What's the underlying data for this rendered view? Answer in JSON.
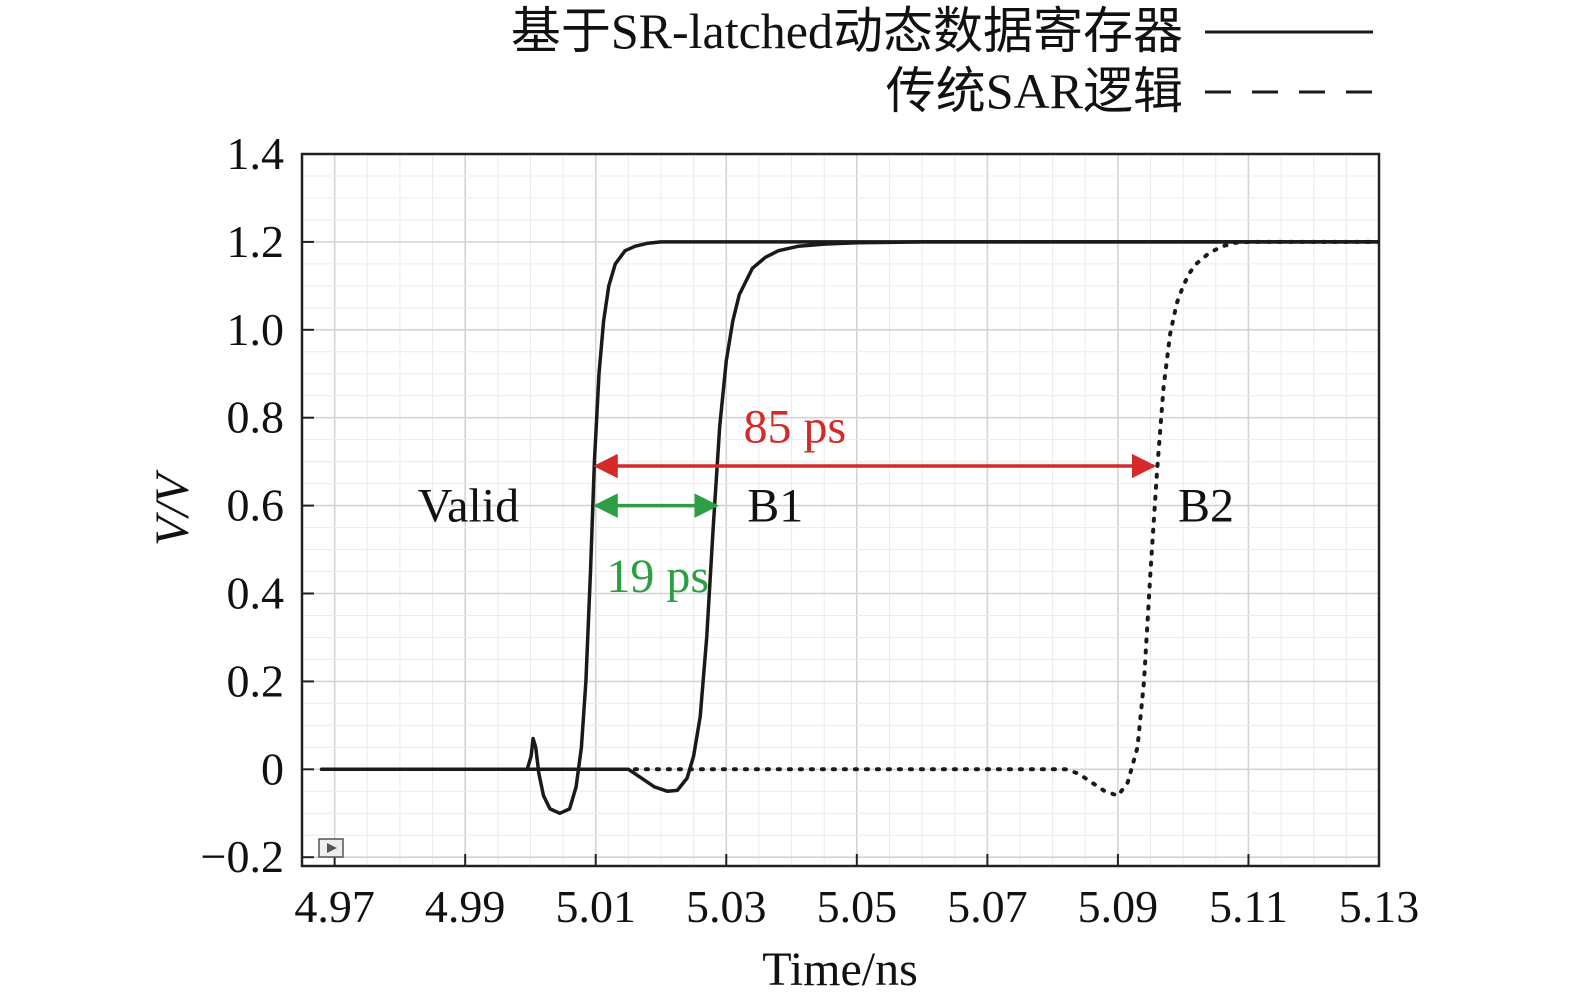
{
  "chart_data": {
    "type": "line",
    "xlabel": "Time/ns",
    "ylabel": "V/V",
    "xlim": [
      4.965,
      5.13
    ],
    "ylim": [
      -0.22,
      1.4
    ],
    "xticks": [
      4.97,
      4.99,
      5.01,
      5.03,
      5.05,
      5.07,
      5.09,
      5.11,
      5.13
    ],
    "xtick_labels": [
      "4.97",
      "4.99",
      "5.01",
      "5.03",
      "5.05",
      "5.07",
      "5.09",
      "5.11",
      "5.13"
    ],
    "yticks": [
      -0.2,
      0,
      0.2,
      0.4,
      0.6,
      0.8,
      1.0,
      1.2,
      1.4
    ],
    "ytick_labels": [
      "−0.2",
      "0",
      "0.2",
      "0.4",
      "0.6",
      "0.8",
      "1.0",
      "1.2",
      "1.4"
    ],
    "grid": true,
    "legend_position": "top-right",
    "legend": [
      {
        "label": "基于SR-latched动态数据寄存器",
        "style": "solid"
      },
      {
        "label": "传统SAR逻辑",
        "style": "dashed"
      }
    ],
    "series": [
      {
        "style": "solid",
        "x": [
          4.968,
          4.9995,
          5.0001,
          5.0004,
          5.0008,
          5.0013,
          5.002,
          5.003,
          5.0045,
          5.006,
          5.007,
          5.0078,
          5.0085,
          5.0092,
          5.0098,
          5.0105,
          5.0112,
          5.012,
          5.013,
          5.0145,
          5.016,
          5.018,
          5.02,
          5.025,
          5.13
        ],
        "y": [
          0,
          0,
          0.03,
          0.07,
          0.05,
          -0.01,
          -0.06,
          -0.09,
          -0.1,
          -0.09,
          -0.04,
          0.05,
          0.2,
          0.45,
          0.7,
          0.9,
          1.02,
          1.1,
          1.15,
          1.18,
          1.19,
          1.197,
          1.2,
          1.2,
          1.2
        ]
      },
      {
        "style": "solid",
        "x": [
          4.968,
          5.015,
          5.017,
          5.019,
          5.021,
          5.0225,
          5.024,
          5.025,
          5.026,
          5.027,
          5.028,
          5.029,
          5.03,
          5.031,
          5.032,
          5.034,
          5.036,
          5.038,
          5.041,
          5.045,
          5.05,
          5.06,
          5.13
        ],
        "y": [
          0,
          0,
          -0.02,
          -0.04,
          -0.05,
          -0.048,
          -0.02,
          0.03,
          0.12,
          0.3,
          0.55,
          0.78,
          0.93,
          1.02,
          1.08,
          1.14,
          1.165,
          1.18,
          1.19,
          1.195,
          1.198,
          1.2,
          1.2
        ]
      },
      {
        "style": "dotted",
        "x": [
          5.016,
          5.082,
          5.084,
          5.086,
          5.088,
          5.09,
          5.0915,
          5.093,
          5.094,
          5.095,
          5.096,
          5.097,
          5.098,
          5.099,
          5.1,
          5.101,
          5.102,
          5.104,
          5.106,
          5.108,
          5.11,
          5.13
        ],
        "y": [
          0,
          0,
          -0.01,
          -0.03,
          -0.05,
          -0.06,
          -0.03,
          0.05,
          0.2,
          0.45,
          0.68,
          0.87,
          0.99,
          1.06,
          1.1,
          1.13,
          1.15,
          1.175,
          1.19,
          1.198,
          1.2,
          1.2
        ]
      }
    ],
    "annotations": [
      {
        "text": "85 ps",
        "color": "#d42a2a",
        "from_x": 5.01,
        "to_x": 5.0955,
        "y": 0.69,
        "text_x": 5.0405,
        "text_y": 0.78
      },
      {
        "text": "19 ps",
        "color": "#2e9e44",
        "from_x": 5.01,
        "to_x": 5.0285,
        "y": 0.6,
        "text_x": 5.0195,
        "text_y": 0.44
      },
      {
        "text": "Valid",
        "x": 4.9905,
        "y": 0.6
      },
      {
        "text": "B1",
        "x": 5.0375,
        "y": 0.6
      },
      {
        "text": "B2",
        "x": 5.1035,
        "y": 0.6
      }
    ]
  }
}
